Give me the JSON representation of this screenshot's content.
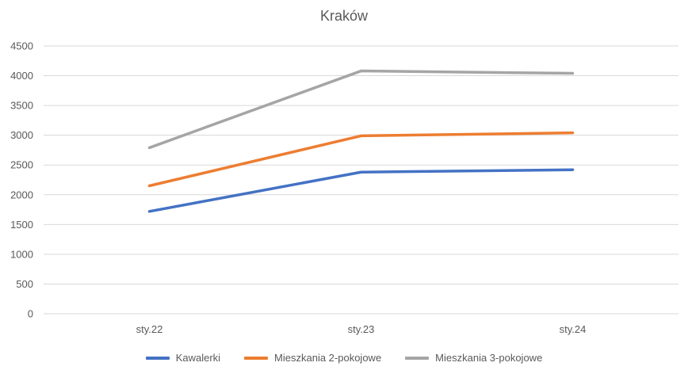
{
  "chart_data": {
    "type": "line",
    "title": "Kraków",
    "x": [
      "sty.22",
      "sty.23",
      "sty.24"
    ],
    "series": [
      {
        "name": "Kawalerki",
        "color": "#4472c4",
        "values": [
          1720,
          2380,
          2420
        ]
      },
      {
        "name": "Mieszkania 2-pokojowe",
        "color": "#ed7d31",
        "values": [
          2150,
          2990,
          3040
        ]
      },
      {
        "name": "Mieszkania 3-pokojowe",
        "color": "#a5a5a5",
        "values": [
          2790,
          4080,
          4040
        ]
      }
    ],
    "xlabel": "",
    "ylabel": "",
    "ylim": [
      0,
      4500
    ],
    "ytick_step": 500,
    "grid": true,
    "legend_position": "bottom",
    "gridline_color": "#d9d9d9",
    "axis_label_color": "#595959",
    "title_color": "#595959"
  }
}
